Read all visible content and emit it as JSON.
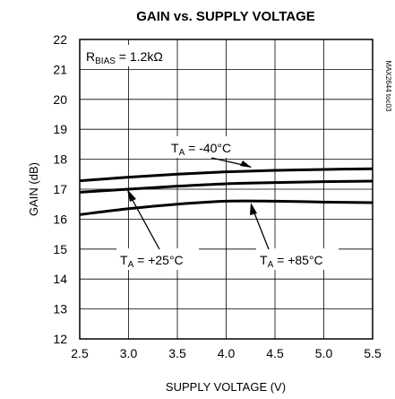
{
  "chart_data": {
    "type": "line",
    "title": "GAIN vs. SUPPLY VOLTAGE",
    "xlabel": "SUPPLY VOLTAGE (V)",
    "ylabel": "GAIN (dB)",
    "xlim": [
      2.5,
      5.5
    ],
    "ylim": [
      12,
      22
    ],
    "xticks": [
      "2.5",
      "3.0",
      "3.5",
      "4.0",
      "4.5",
      "5.0",
      "5.5"
    ],
    "yticks": [
      "12",
      "13",
      "14",
      "15",
      "16",
      "17",
      "18",
      "19",
      "20",
      "21",
      "22"
    ],
    "grid": true,
    "side_label": "MAX2644 toc03",
    "condition": {
      "main": "R",
      "sub": "BIAS",
      "rest": " = 1.2kΩ"
    },
    "series": [
      {
        "name": "TA = -40°C",
        "label_main": "T",
        "label_sub": "A",
        "label_rest": " = -40°C",
        "x": [
          2.5,
          3.0,
          3.5,
          4.0,
          4.5,
          5.0,
          5.5
        ],
        "y": [
          17.28,
          17.4,
          17.5,
          17.58,
          17.63,
          17.66,
          17.68
        ]
      },
      {
        "name": "TA = +25°C",
        "label_main": "T",
        "label_sub": "A",
        "label_rest": " = +25°C",
        "x": [
          2.5,
          3.0,
          3.5,
          4.0,
          4.5,
          5.0,
          5.5
        ],
        "y": [
          16.9,
          17.0,
          17.1,
          17.18,
          17.22,
          17.25,
          17.27
        ]
      },
      {
        "name": "TA = +85°C",
        "label_main": "T",
        "label_sub": "A",
        "label_rest": " = +85°C",
        "x": [
          2.5,
          3.0,
          3.5,
          4.0,
          4.5,
          5.0,
          5.5
        ],
        "y": [
          16.15,
          16.35,
          16.5,
          16.6,
          16.6,
          16.57,
          16.55
        ]
      }
    ]
  }
}
